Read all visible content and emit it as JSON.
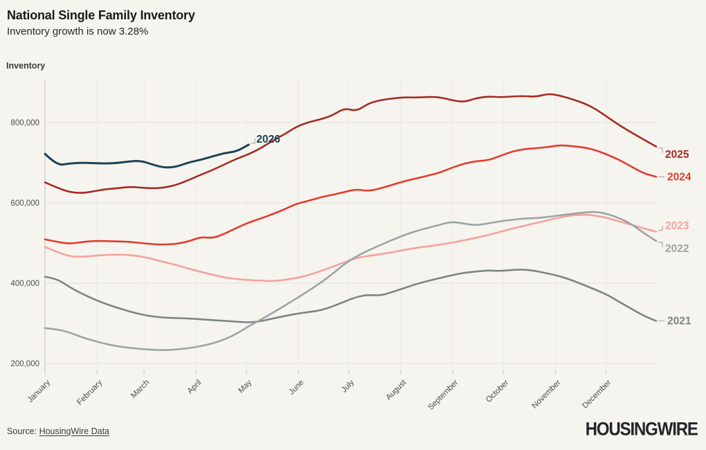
{
  "header": {
    "title": "National Single Family Inventory",
    "subtitle": "Inventory growth is now 3.28%"
  },
  "footer": {
    "source_prefix": "Source:",
    "source_link": "HousingWire Data",
    "logo": "HOUSINGWIRE"
  },
  "colors": {
    "background": "#F6F4EF",
    "grid_h": "#E4E1DA",
    "grid_v": "#ECE9E2",
    "axis_line": "#C8C5BE",
    "tick_text": "#4C4C4C",
    "label_connector": "#B8B5AD"
  },
  "chart_data": {
    "type": "line",
    "title": "National Single Family Inventory",
    "subtitle": "Inventory growth is now 3.28%",
    "ylabel": "Inventory",
    "x_unit": "week_of_year (weekly points, January through December)",
    "grid": "horizontal and faint vertical month lines",
    "legend_position": "direct line labels at right edge (2026 labeled mid-chart at its last point in early May)",
    "ylim": [
      180000,
      910000
    ],
    "y_ticks": [
      {
        "value": 800000,
        "label": "800,000"
      },
      {
        "value": 600000,
        "label": "600,000"
      },
      {
        "value": 400000,
        "label": "400,000"
      },
      {
        "value": 200000,
        "label": "200,000"
      }
    ],
    "months": [
      "January",
      "February",
      "March",
      "April",
      "May",
      "June",
      "July",
      "August",
      "September",
      "October",
      "November",
      "December"
    ],
    "month_start_days": [
      0,
      31,
      59,
      90,
      120,
      151,
      181,
      212,
      243,
      273,
      304,
      334
    ],
    "days_per_year": 364,
    "series": [
      {
        "name": "2021",
        "color": "#7D8387",
        "label_style": "dash",
        "values": [
          416000,
          411000,
          391000,
          375000,
          361000,
          349000,
          339000,
          330000,
          322000,
          317000,
          314000,
          313000,
          312000,
          310000,
          308000,
          306000,
          304000,
          302000,
          305000,
          312000,
          318000,
          324000,
          328000,
          332000,
          342000,
          354000,
          366000,
          371000,
          369000,
          378000,
          388000,
          398000,
          406000,
          413000,
          420000,
          426000,
          429000,
          432000,
          430000,
          433000,
          434000,
          430000,
          424000,
          417000,
          407000,
          395000,
          383000,
          370000,
          352000,
          335000,
          318000,
          306000
        ]
      },
      {
        "name": "2023",
        "color": "#F5A29C",
        "label_style": "step-up",
        "values": [
          490000,
          478000,
          467000,
          465000,
          468000,
          470000,
          471000,
          470000,
          467000,
          460000,
          452000,
          445000,
          436000,
          428000,
          421000,
          414000,
          410000,
          408000,
          406000,
          405000,
          408000,
          413000,
          420000,
          430000,
          441000,
          452000,
          463000,
          468000,
          472000,
          477000,
          483000,
          488000,
          492000,
          496000,
          501000,
          507000,
          513000,
          520000,
          528000,
          536000,
          543000,
          550000,
          557000,
          564000,
          569000,
          571000,
          568000,
          562000,
          553000,
          545000,
          536000,
          528000
        ]
      },
      {
        "name": "2022",
        "color": "#9CA4A8",
        "label_style": "step-down",
        "values": [
          288000,
          285000,
          278000,
          266000,
          257000,
          249000,
          243000,
          239000,
          236000,
          234000,
          233000,
          235000,
          238000,
          243000,
          250000,
          260000,
          274000,
          293000,
          309000,
          326000,
          344000,
          362000,
          381000,
          401000,
          423000,
          448000,
          467000,
          482000,
          495000,
          508000,
          520000,
          530000,
          538000,
          546000,
          553000,
          548000,
          544000,
          549000,
          554000,
          558000,
          561000,
          562000,
          565000,
          569000,
          573000,
          576000,
          578000,
          572000,
          561000,
          546000,
          524000,
          505000
        ]
      },
      {
        "name": "2024",
        "color": "#E23B2D",
        "label_style": "dash",
        "values": [
          509000,
          503000,
          498000,
          502000,
          505000,
          505000,
          504000,
          503000,
          500000,
          497000,
          496000,
          498000,
          504000,
          515000,
          512000,
          523000,
          538000,
          551000,
          561000,
          572000,
          584000,
          598000,
          605000,
          614000,
          620000,
          627000,
          634000,
          629000,
          636000,
          645000,
          654000,
          661000,
          668000,
          676000,
          688000,
          698000,
          704000,
          706000,
          717000,
          728000,
          734000,
          736000,
          739000,
          744000,
          741000,
          738000,
          731000,
          719000,
          706000,
          689000,
          673000,
          665000
        ]
      },
      {
        "name": "2025",
        "color": "#A52B24",
        "label_style": "step-down",
        "values": [
          651000,
          638000,
          627000,
          624000,
          628000,
          634000,
          636000,
          640000,
          638000,
          636000,
          638000,
          645000,
          657000,
          670000,
          682000,
          696000,
          710000,
          721000,
          736000,
          755000,
          771000,
          790000,
          801000,
          808000,
          818000,
          836000,
          828000,
          848000,
          856000,
          860000,
          863000,
          862000,
          864000,
          863000,
          855000,
          851000,
          861000,
          865000,
          863000,
          865000,
          866000,
          864000,
          872000,
          867000,
          858000,
          848000,
          833000,
          812000,
          792000,
          774000,
          757000,
          740000
        ]
      },
      {
        "name": "2026",
        "color": "#1D4254",
        "label_style": "step-up",
        "values": [
          722000,
          693000,
          698000,
          700000,
          699000,
          698000,
          699000,
          703000,
          705000,
          695000,
          687000,
          690000,
          701000,
          707000,
          716000,
          724000,
          728000,
          745000
        ]
      }
    ]
  }
}
